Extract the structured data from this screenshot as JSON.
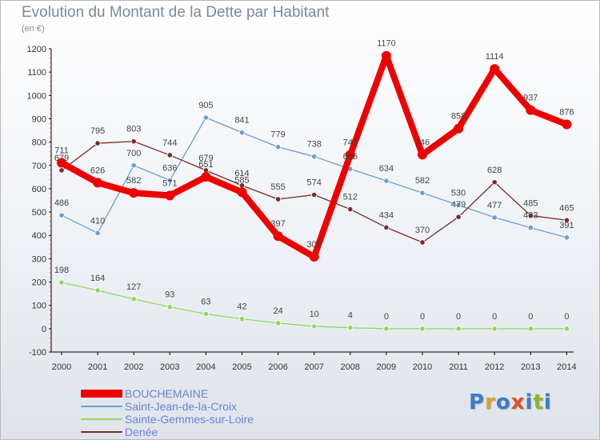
{
  "title": "Evolution du Montant de la Dette par Habitant",
  "subtitle": "(en €)",
  "brand": {
    "text": "Proxiti",
    "colors": [
      "#3a7ec9",
      "#e0a020",
      "#3a7ec9",
      "#e05020",
      "#3a7ec9",
      "#8ab820",
      "#3a7ec9"
    ]
  },
  "chart_data": {
    "type": "line",
    "categories": [
      "2000",
      "2001",
      "2002",
      "2003",
      "2004",
      "2005",
      "2006",
      "2007",
      "2008",
      "2009",
      "2010",
      "2011",
      "2012",
      "2013",
      "2014"
    ],
    "ylim": [
      -100,
      1200
    ],
    "yticks": [
      -100,
      0,
      100,
      200,
      300,
      400,
      500,
      600,
      700,
      800,
      900,
      1000,
      1100,
      1200
    ],
    "grid": false,
    "legend": "bottom-left",
    "series": [
      {
        "name": "BOUCHEMAINE",
        "color": "#ee0000",
        "values": [
          711,
          626,
          582,
          571,
          651,
          585,
          397,
          308,
          745,
          1170,
          746,
          858,
          1114,
          937,
          876
        ]
      },
      {
        "name": "Saint-Jean-de-la-Croix",
        "color": "#6a9fd0",
        "values": [
          486,
          410,
          700,
          636,
          905,
          841,
          779,
          738,
          685,
          634,
          582,
          530,
          477,
          433,
          391
        ]
      },
      {
        "name": "Sainte-Gemmes-sur-Loire",
        "color": "#90d860",
        "values": [
          198,
          164,
          127,
          93,
          63,
          42,
          24,
          10,
          4,
          0,
          0,
          0,
          0,
          0,
          0
        ]
      },
      {
        "name": "Denée",
        "color": "#7a2a2a",
        "values": [
          679,
          795,
          803,
          744,
          679,
          614,
          555,
          574,
          512,
          434,
          370,
          479,
          628,
          485,
          465
        ]
      }
    ]
  }
}
